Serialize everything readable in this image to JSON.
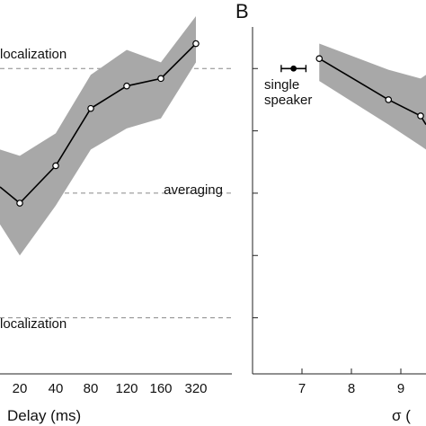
{
  "chart_data": [
    {
      "type": "line",
      "panel": "",
      "xlabel": "Delay (ms)",
      "x_ticks": [
        "",
        "20",
        "40",
        "80",
        "120",
        "160",
        "320"
      ],
      "series": [
        {
          "values": [
            0.05,
            -0.08,
            0.22,
            0.68,
            0.86,
            0.92,
            1.2
          ],
          "band_low": [
            -0.25,
            -0.5,
            -0.1,
            0.35,
            0.52,
            0.6,
            1.05
          ],
          "band_high": [
            0.35,
            0.3,
            0.48,
            0.95,
            1.15,
            1.05,
            1.42
          ]
        }
      ],
      "ylim": [
        -1.45,
        1.55
      ],
      "reference_lines": [
        {
          "label": "localization",
          "value": 1.0
        },
        {
          "label": "averaging",
          "value": 0.0
        },
        {
          "label": "localization",
          "value": -1.0
        }
      ],
      "colors": {
        "band": "#a8a8a8",
        "line": "#000000",
        "ref": "#888888"
      }
    },
    {
      "type": "line",
      "panel": "B",
      "xlabel": "σ (",
      "x_ticks": [
        "7",
        "8",
        "9"
      ],
      "xlim": [
        6.0,
        9.75
      ],
      "series": [
        {
          "x": [
            7.35,
            8.75,
            9.4
          ],
          "values": [
            1.08,
            0.75,
            0.62
          ],
          "band_low": [
            0.9,
            0.55,
            0.38
          ],
          "band_high": [
            1.2,
            0.99,
            0.92
          ]
        }
      ],
      "single_speaker": {
        "label_line1": "single",
        "label_line2": "speaker",
        "x": 6.83,
        "xerr": 0.25,
        "value": 1.0
      },
      "ylim": [
        -1.45,
        1.55
      ],
      "colors": {
        "band": "#a8a8a8",
        "line": "#000000"
      }
    }
  ]
}
